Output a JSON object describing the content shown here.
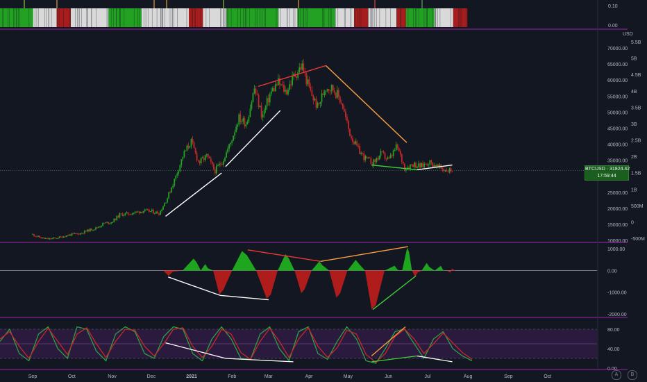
{
  "symbol": "BTCUSD",
  "price_tag": {
    "symbol": "BTCUSD",
    "price": "31824.42",
    "countdown": "17:59:44"
  },
  "colors": {
    "up": "#089981",
    "down": "#b71c1c",
    "bull_bar": "#22a122",
    "bear_bar": "#a51d1d",
    "neutral_bar": "#d9d9d9",
    "accent_purple": "#9c27b0",
    "background": "#131722"
  },
  "chart_data": [
    {
      "type": "bar",
      "panel": "top-strip-indicator",
      "ticks": [
        "0.10",
        "0.00"
      ],
      "segments": [
        {
          "color": "green",
          "share": 0.07
        },
        {
          "color": "white",
          "share": 0.05
        },
        {
          "color": "red",
          "share": 0.03
        },
        {
          "color": "white",
          "share": 0.08
        },
        {
          "color": "green",
          "share": 0.07
        },
        {
          "color": "white",
          "share": 0.1
        },
        {
          "color": "red",
          "share": 0.03
        },
        {
          "color": "white",
          "share": 0.05
        },
        {
          "color": "green",
          "share": 0.11
        },
        {
          "color": "white",
          "share": 0.04
        },
        {
          "color": "green",
          "share": 0.08
        },
        {
          "color": "white",
          "share": 0.04
        },
        {
          "color": "red",
          "share": 0.03
        },
        {
          "color": "white",
          "share": 0.06
        },
        {
          "color": "red",
          "share": 0.02
        },
        {
          "color": "green",
          "share": 0.06
        },
        {
          "color": "white",
          "share": 0.04
        },
        {
          "color": "red",
          "share": 0.03
        }
      ]
    },
    {
      "type": "line",
      "panel": "price",
      "series": [
        {
          "name": "BTCUSD",
          "values": [
            11800,
            10800,
            10400,
            10700,
            11300,
            11900,
            12100,
            13100,
            13800,
            15300,
            15700,
            18000,
            18300,
            18700,
            19200,
            19000,
            18500,
            23200,
            29400,
            36500,
            40900,
            34200,
            36300,
            31600,
            34800,
            40400,
            48200,
            46500,
            57400,
            48500,
            55800,
            59200,
            56300,
            61300,
            64500,
            56700,
            51400,
            58000,
            57300,
            53200,
            43600,
            38700,
            35500,
            34100,
            37000,
            35000,
            39300,
            32500,
            33900,
            33000,
            34500,
            33100,
            32000,
            31824
          ]
        }
      ],
      "date_range": [
        "2020-09-01",
        "2021-07-20"
      ],
      "y_ticks": [
        "70000.00",
        "65000.00",
        "60000.00",
        "55000.00",
        "50000.00",
        "45000.00",
        "40000.00",
        "35000.00",
        "30000.00",
        "25000.00",
        "20000.00",
        "15000.00",
        "10000.00"
      ],
      "ylim": [
        10000,
        75000
      ],
      "unit_label": "USD",
      "secondary_ticks": [
        "5.5B",
        "5B",
        "4.5B",
        "4B",
        "3.5B",
        "3B",
        "2.5B",
        "2B",
        "1.5B",
        "1B",
        "500M",
        "0",
        "-500M"
      ],
      "trendlines": [
        {
          "color": "white",
          "from": [
            "2020-12-12",
            17500
          ],
          "to": [
            "2021-01-24",
            31000
          ]
        },
        {
          "color": "white",
          "from": [
            "2021-01-27",
            33000
          ],
          "to": [
            "2021-03-10",
            50500
          ]
        },
        {
          "color": "red",
          "from": [
            "2021-02-21",
            58000
          ],
          "to": [
            "2021-04-14",
            64500
          ]
        },
        {
          "color": "orange",
          "from": [
            "2021-04-14",
            64500
          ],
          "to": [
            "2021-06-15",
            40500
          ]
        },
        {
          "color": "green",
          "from": [
            "2021-05-19",
            33500
          ],
          "to": [
            "2021-06-23",
            32000
          ]
        },
        {
          "color": "white",
          "from": [
            "2021-06-23",
            32000
          ],
          "to": [
            "2021-07-20",
            33500
          ]
        }
      ]
    },
    {
      "type": "area",
      "panel": "oscillator",
      "y_ticks": [
        "1000.00",
        "0.00",
        "-1000.00",
        "-2000.00"
      ],
      "ylim": [
        -2100,
        1200
      ],
      "bumps": [
        {
          "date": "2020-12-15",
          "value": -250
        },
        {
          "date": "2021-01-04",
          "value": 550
        },
        {
          "date": "2021-01-12",
          "value": 300
        },
        {
          "date": "2021-01-23",
          "value": -1100
        },
        {
          "date": "2021-02-10",
          "value": 900
        },
        {
          "date": "2021-03-01",
          "value": -1300
        },
        {
          "date": "2021-03-15",
          "value": 750
        },
        {
          "date": "2021-03-27",
          "value": -1050
        },
        {
          "date": "2021-04-10",
          "value": 420
        },
        {
          "date": "2021-04-23",
          "value": -1250
        },
        {
          "date": "2021-05-08",
          "value": 490
        },
        {
          "date": "2021-05-20",
          "value": -1800
        },
        {
          "date": "2021-06-07",
          "value": 220
        },
        {
          "date": "2021-06-16",
          "value": 1050
        },
        {
          "date": "2021-06-22",
          "value": -300
        },
        {
          "date": "2021-07-01",
          "value": 350
        },
        {
          "date": "2021-07-12",
          "value": 220
        },
        {
          "date": "2021-07-19",
          "value": -100
        }
      ],
      "trendlines": [
        {
          "color": "white",
          "from": [
            "2020-12-14",
            -300
          ],
          "to": [
            "2021-01-23",
            -1150
          ]
        },
        {
          "color": "white",
          "from": [
            "2021-01-23",
            -1150
          ],
          "to": [
            "2021-03-01",
            -1350
          ]
        },
        {
          "color": "red",
          "from": [
            "2021-02-13",
            950
          ],
          "to": [
            "2021-04-10",
            420
          ]
        },
        {
          "color": "orange",
          "from": [
            "2021-04-10",
            420
          ],
          "to": [
            "2021-06-16",
            1100
          ]
        },
        {
          "color": "green",
          "from": [
            "2021-05-20",
            -1800
          ],
          "to": [
            "2021-06-22",
            -250
          ]
        }
      ]
    },
    {
      "type": "line",
      "panel": "stochastic",
      "y_ticks": [
        "80.00",
        "40.00",
        "0.00"
      ],
      "ylim": [
        0,
        100
      ],
      "series": [
        {
          "name": "",
          "color": "green",
          "values": [
            55,
            80,
            30,
            15,
            70,
            85,
            40,
            20,
            85,
            80,
            35,
            15,
            70,
            85,
            75,
            30,
            20,
            65,
            85,
            80,
            30,
            15,
            60,
            85,
            60,
            20,
            18,
            70,
            85,
            40,
            15,
            75,
            85,
            30,
            18,
            55,
            85,
            60,
            15,
            10,
            40,
            75,
            80,
            50,
            20,
            60,
            75,
            40,
            25,
            15
          ]
        },
        {
          "name": "",
          "color": "red",
          "values": [
            60,
            75,
            45,
            20,
            55,
            82,
            55,
            28,
            70,
            83,
            50,
            22,
            55,
            80,
            78,
            45,
            25,
            50,
            80,
            83,
            45,
            22,
            45,
            80,
            70,
            32,
            18,
            55,
            82,
            55,
            22,
            60,
            83,
            45,
            22,
            42,
            78,
            70,
            28,
            12,
            30,
            65,
            80,
            60,
            30,
            50,
            72,
            52,
            32,
            18
          ]
        }
      ],
      "levels": [
        80,
        50,
        20
      ],
      "trendlines": [
        {
          "color": "white",
          "from": [
            "2020-12-12",
            52
          ],
          "to": [
            "2021-01-27",
            20
          ]
        },
        {
          "color": "white",
          "from": [
            "2021-01-27",
            20
          ],
          "to": [
            "2021-03-20",
            13
          ]
        },
        {
          "color": "green",
          "from": [
            "2021-05-19",
            13
          ],
          "to": [
            "2021-06-23",
            25
          ]
        },
        {
          "color": "orange",
          "from": [
            "2021-05-19",
            25
          ],
          "to": [
            "2021-06-14",
            85
          ]
        },
        {
          "color": "white",
          "from": [
            "2021-06-23",
            25
          ],
          "to": [
            "2021-07-20",
            13
          ]
        }
      ]
    }
  ],
  "x_axis": {
    "labels": [
      {
        "text": "Sep",
        "date": "2020-09-01"
      },
      {
        "text": "Oct",
        "date": "2020-10-01"
      },
      {
        "text": "Nov",
        "date": "2020-11-01"
      },
      {
        "text": "Dec",
        "date": "2020-12-01"
      },
      {
        "text": "2021",
        "date": "2021-01-01"
      },
      {
        "text": "Feb",
        "date": "2021-02-01"
      },
      {
        "text": "Mar",
        "date": "2021-03-01"
      },
      {
        "text": "Apr",
        "date": "2021-04-01"
      },
      {
        "text": "May",
        "date": "2021-05-01"
      },
      {
        "text": "Jun",
        "date": "2021-06-01"
      },
      {
        "text": "Jul",
        "date": "2021-07-01"
      },
      {
        "text": "Aug",
        "date": "2021-08-01"
      },
      {
        "text": "Sep",
        "date": "2021-09-01"
      },
      {
        "text": "Oct",
        "date": "2021-10-01"
      }
    ]
  },
  "corner_buttons": [
    {
      "label": "A",
      "icon": "auto-scale-icon"
    },
    {
      "label": "B",
      "icon": "settings-icon"
    }
  ]
}
